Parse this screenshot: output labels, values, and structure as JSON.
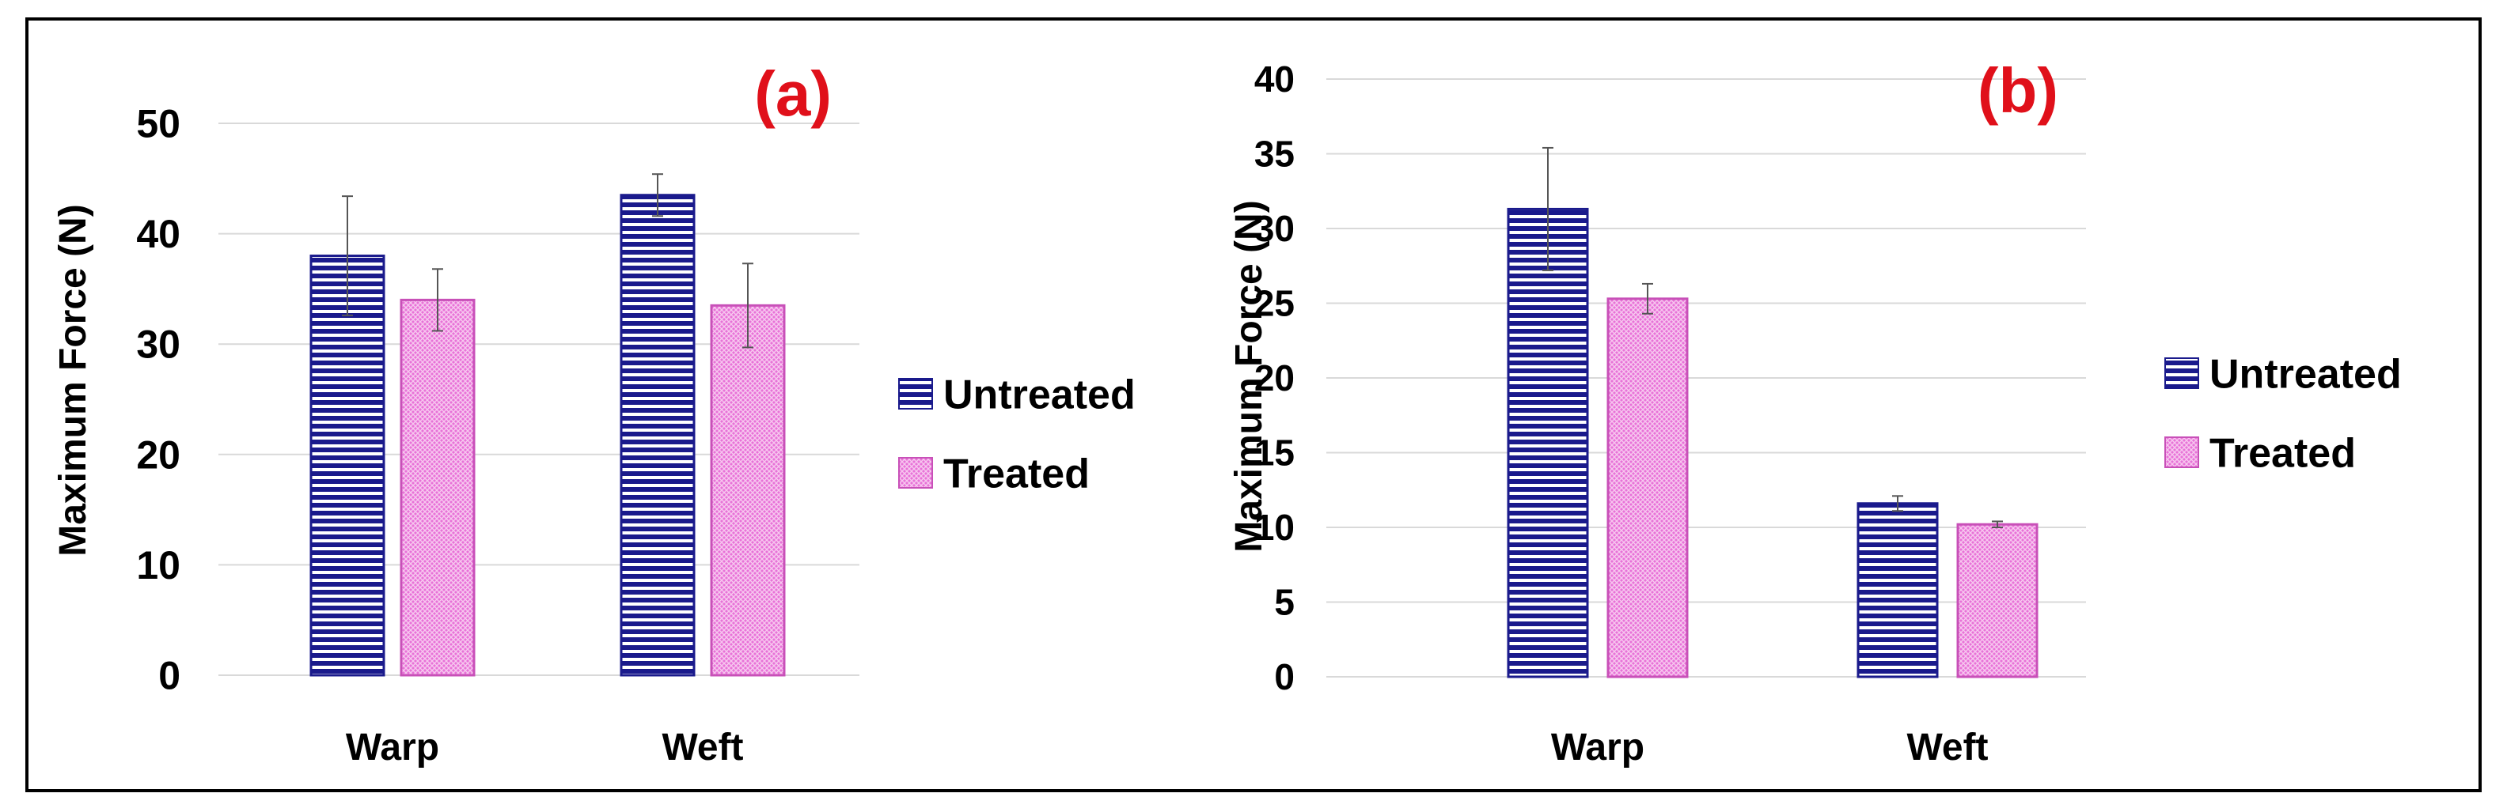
{
  "colors": {
    "untreated": "#1a1a8c",
    "untreated_fill_light": "#ffffff",
    "treated": "#e872d8",
    "treated_dark": "#c850b8",
    "grid": "#d9d9d9",
    "panel_label": "#e0101a"
  },
  "chart_data": [
    {
      "type": "bar",
      "panel_label": "(a)",
      "ylabel": "Maximum Force (N)",
      "categories": [
        "Warp",
        "Weft"
      ],
      "ylim": [
        0,
        50
      ],
      "yticks": [
        0,
        10,
        20,
        30,
        40,
        50
      ],
      "grid": true,
      "legend_position": "right",
      "series": [
        {
          "name": "Untreated",
          "values": [
            38.0,
            43.5
          ],
          "errors": [
            5.4,
            1.9
          ]
        },
        {
          "name": "Treated",
          "values": [
            34.0,
            33.5
          ],
          "errors": [
            2.8,
            3.8
          ]
        }
      ]
    },
    {
      "type": "bar",
      "panel_label": "(b)",
      "ylabel": "Maximum Force (N)",
      "categories": [
        "Warp",
        "Weft"
      ],
      "ylim": [
        0,
        40
      ],
      "yticks": [
        0,
        5,
        10,
        15,
        20,
        25,
        30,
        35,
        40
      ],
      "grid": true,
      "legend_position": "right",
      "series": [
        {
          "name": "Untreated",
          "values": [
            31.3,
            11.6
          ],
          "errors": [
            4.1,
            0.5
          ]
        },
        {
          "name": "Treated",
          "values": [
            25.3,
            10.2
          ],
          "errors": [
            1.0,
            0.2
          ]
        }
      ]
    }
  ]
}
